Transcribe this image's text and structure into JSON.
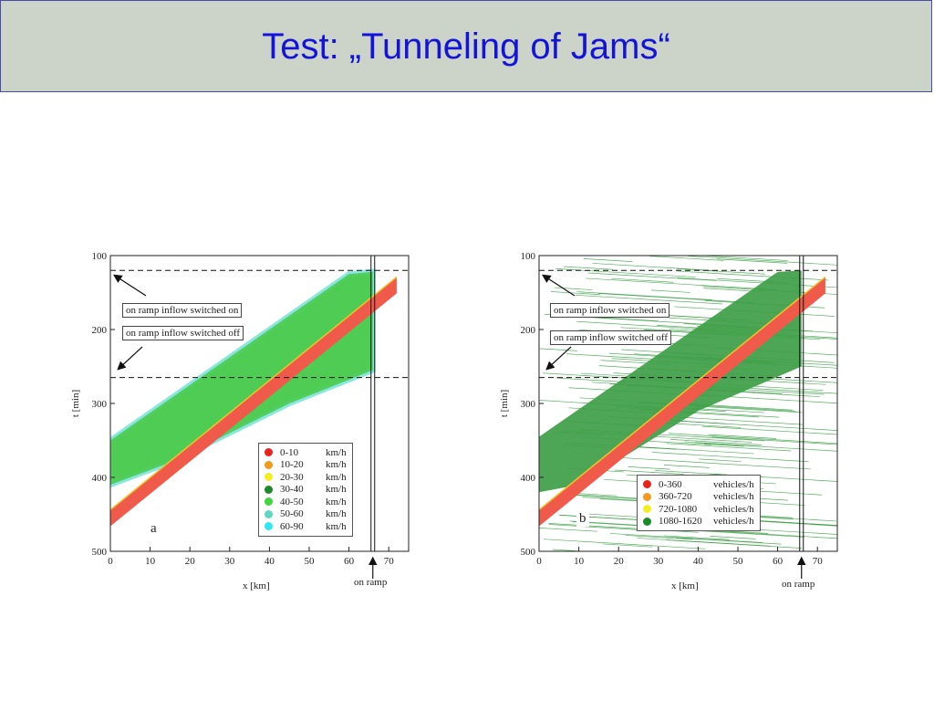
{
  "slide": {
    "title": "Test: „Tunneling of Jams“"
  },
  "chart_data": [
    {
      "type": "heatmap",
      "panel": "a",
      "xlabel": "x [km]",
      "ylabel": "t [min]",
      "xlim": [
        0,
        75
      ],
      "ylim": [
        500,
        100
      ],
      "xticks": [
        0,
        10,
        20,
        30,
        40,
        50,
        60,
        70
      ],
      "yticks": [
        100,
        200,
        300,
        400,
        500
      ],
      "annotations": [
        "on ramp inflow switched on",
        "on ramp inflow switched off",
        "on ramp"
      ],
      "dashed_lines_t": [
        120,
        265
      ],
      "on_ramp_x": 66,
      "legend_unit": "km/h",
      "legend": [
        {
          "range": "0-10",
          "unit": "km/h",
          "color": "#e8231b"
        },
        {
          "range": "10-20",
          "unit": "km/h",
          "color": "#f29a1f"
        },
        {
          "range": "20-30",
          "unit": "km/h",
          "color": "#f2ee21"
        },
        {
          "range": "30-40",
          "unit": "km/h",
          "color": "#1a8a2a"
        },
        {
          "range": "40-50",
          "unit": "km/h",
          "color": "#40d640"
        },
        {
          "range": "50-60",
          "unit": "km/h",
          "color": "#5fd6c0"
        },
        {
          "range": "60-90",
          "unit": "km/h",
          "color": "#2ee8f0"
        }
      ],
      "jam_band": {
        "x_start": 0,
        "t_start": 455,
        "x_end": 72,
        "t_end": 140
      },
      "congested_region": [
        {
          "x": 0,
          "t": 350
        },
        {
          "x": 60,
          "t": 125
        },
        {
          "x": 66,
          "t": 122
        },
        {
          "x": 66,
          "t": 255
        },
        {
          "x": 45,
          "t": 300
        },
        {
          "x": 15,
          "t": 380
        },
        {
          "x": 0,
          "t": 410
        }
      ]
    },
    {
      "type": "heatmap",
      "panel": "b",
      "xlabel": "x [km]",
      "ylabel": "t [min]",
      "xlim": [
        0,
        75
      ],
      "ylim": [
        500,
        100
      ],
      "xticks": [
        0,
        10,
        20,
        30,
        40,
        50,
        60,
        70
      ],
      "yticks": [
        100,
        200,
        300,
        400,
        500
      ],
      "annotations": [
        "on ramp inflow switched on",
        "on ramp inflow switched off",
        "on ramp"
      ],
      "dashed_lines_t": [
        120,
        265
      ],
      "on_ramp_x": 66,
      "legend_unit": "vehicles/h",
      "legend": [
        {
          "range": "0-360",
          "unit": "vehicles/h",
          "color": "#e8231b"
        },
        {
          "range": "360-720",
          "unit": "vehicles/h",
          "color": "#f29a1f"
        },
        {
          "range": "720-1080",
          "unit": "vehicles/h",
          "color": "#f2ee21"
        },
        {
          "range": "1080-1620",
          "unit": "vehicles/h",
          "color": "#1a8a2a"
        }
      ],
      "jam_band": {
        "x_start": 0,
        "t_start": 455,
        "x_end": 72,
        "t_end": 140
      },
      "congested_region": [
        {
          "x": 0,
          "t": 345
        },
        {
          "x": 60,
          "t": 122
        },
        {
          "x": 66,
          "t": 120
        },
        {
          "x": 66,
          "t": 250
        },
        {
          "x": 40,
          "t": 310
        },
        {
          "x": 10,
          "t": 410
        },
        {
          "x": 0,
          "t": 420
        }
      ]
    }
  ]
}
